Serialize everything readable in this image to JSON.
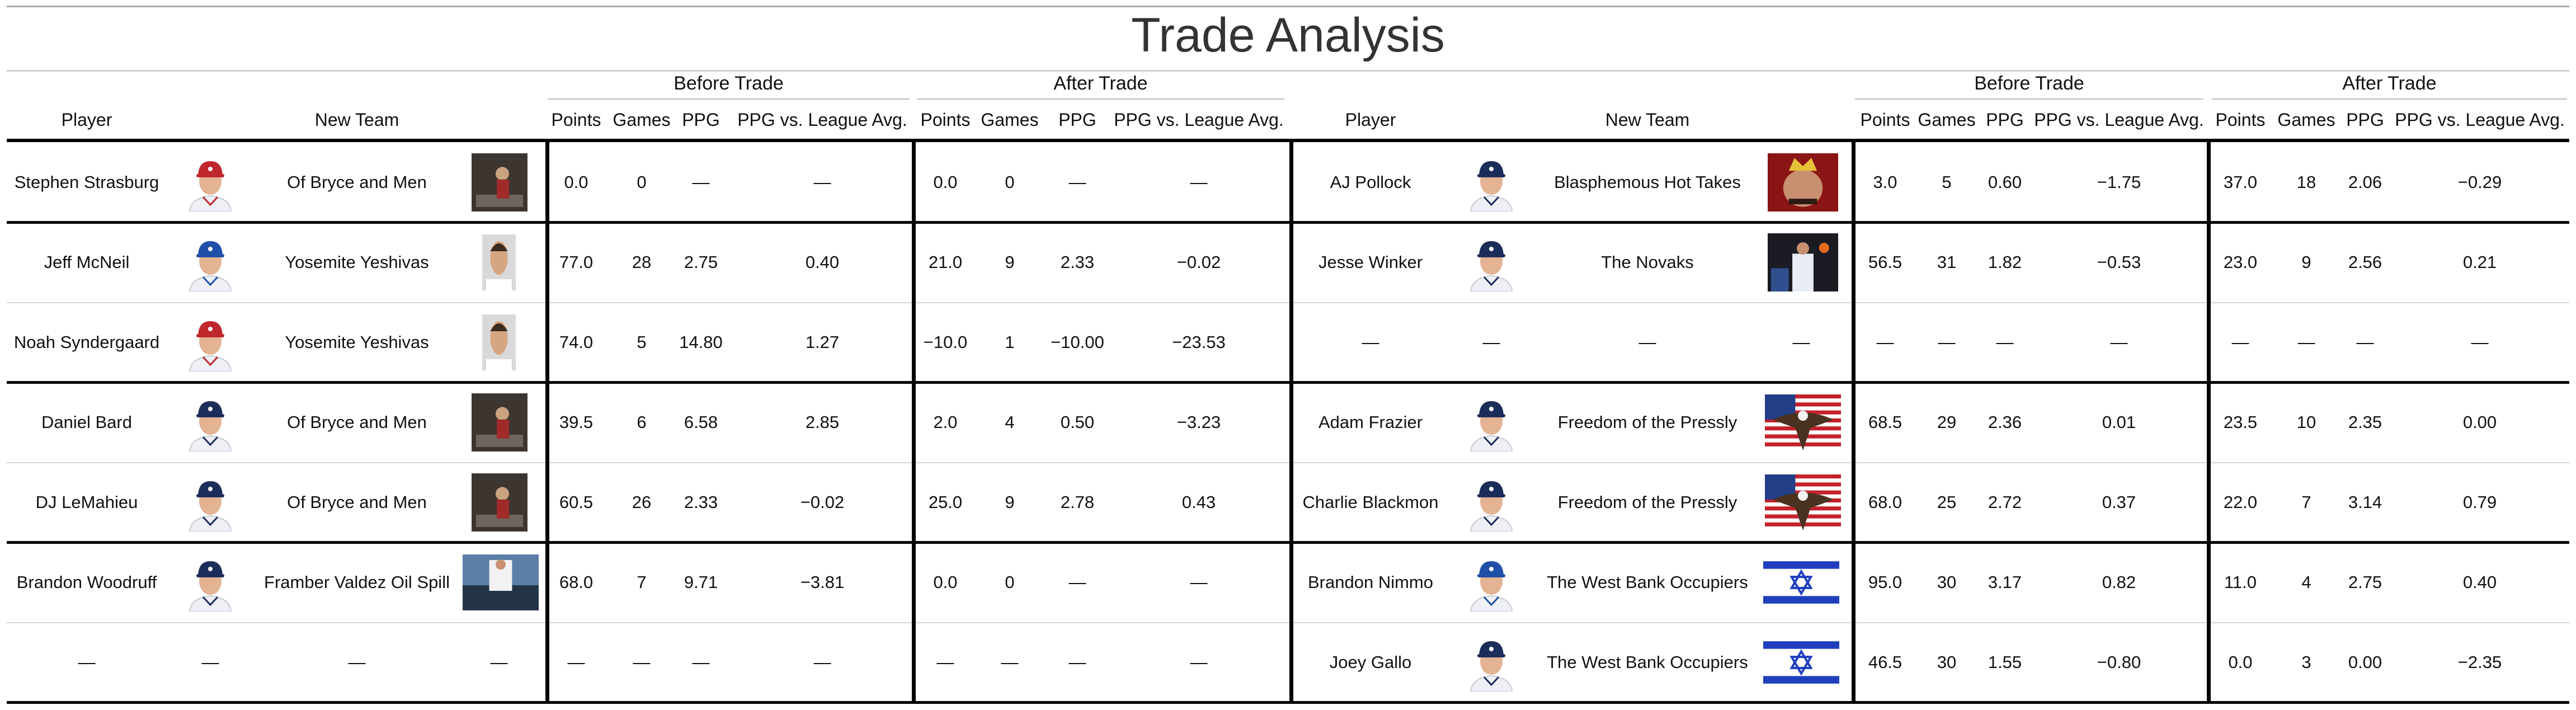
{
  "chart_data": {
    "type": "table",
    "title": "Trade Analysis",
    "group_headers": [
      "Before Trade",
      "After Trade",
      "Before Trade",
      "After Trade"
    ],
    "columns": [
      "Player",
      "New Team",
      "Points",
      "Games",
      "PPG",
      "PPG vs. League Avg.",
      "Points",
      "Games",
      "PPG",
      "PPG vs. League Avg.",
      "Player",
      "New Team",
      "Points",
      "Games",
      "PPG",
      "PPG vs. League Avg.",
      "Points",
      "Games",
      "PPG",
      "PPG vs. League Avg."
    ],
    "rows": [
      {
        "left": [
          "Stephen Strasburg",
          "Of Bryce and Men",
          "0.0",
          "0",
          "—",
          "—",
          "0.0",
          "0",
          "—",
          "—"
        ],
        "right": [
          "AJ Pollock",
          "Blasphemous Hot Takes",
          "3.0",
          "5",
          "0.60",
          "−1.75",
          "37.0",
          "18",
          "2.06",
          "−0.29"
        ],
        "left_avatar": "red-cap",
        "left_logo": "bryce",
        "right_avatar": "navy-cap",
        "right_logo": "hottakes"
      },
      {
        "left": [
          "Jeff McNeil",
          "Yosemite Yeshivas",
          "77.0",
          "28",
          "2.75",
          "0.40",
          "21.0",
          "9",
          "2.33",
          "−0.02"
        ],
        "right": [
          "Jesse Winker",
          "The Novaks",
          "56.5",
          "31",
          "1.82",
          "−0.53",
          "23.0",
          "9",
          "2.56",
          "0.21"
        ],
        "left_avatar": "blue-cap",
        "left_logo": "yeshiva",
        "right_avatar": "navy-cap",
        "right_logo": "novaks"
      },
      {
        "left": [
          "Noah Syndergaard",
          "Yosemite Yeshivas",
          "74.0",
          "5",
          "14.80",
          "1.27",
          "−10.0",
          "1",
          "−10.00",
          "−23.53"
        ],
        "right": [
          "—",
          "—",
          "—",
          "—",
          "—",
          "—",
          "—",
          "—",
          "—",
          "—"
        ],
        "left_avatar": "red-cap",
        "left_logo": "yeshiva",
        "right_avatar": "",
        "right_logo": ""
      },
      {
        "left": [
          "Daniel Bard",
          "Of Bryce and Men",
          "39.5",
          "6",
          "6.58",
          "2.85",
          "2.0",
          "4",
          "0.50",
          "−3.23"
        ],
        "right": [
          "Adam Frazier",
          "Freedom of the Pressly",
          "68.5",
          "29",
          "2.36",
          "0.01",
          "23.5",
          "10",
          "2.35",
          "0.00"
        ],
        "left_avatar": "navy-cap",
        "left_logo": "bryce",
        "right_avatar": "navy-cap",
        "right_logo": "eagle"
      },
      {
        "left": [
          "DJ LeMahieu",
          "Of Bryce and Men",
          "60.5",
          "26",
          "2.33",
          "−0.02",
          "25.0",
          "9",
          "2.78",
          "0.43"
        ],
        "right": [
          "Charlie Blackmon",
          "Freedom of the Pressly",
          "68.0",
          "25",
          "2.72",
          "0.37",
          "22.0",
          "7",
          "3.14",
          "0.79"
        ],
        "left_avatar": "navy-cap",
        "left_logo": "bryce",
        "right_avatar": "navy-cap",
        "right_logo": "eagle"
      },
      {
        "left": [
          "Brandon Woodruff",
          "Framber Valdez Oil Spill",
          "68.0",
          "7",
          "9.71",
          "−3.81",
          "0.0",
          "0",
          "—",
          "—"
        ],
        "right": [
          "Brandon Nimmo",
          "The West Bank Occupiers",
          "95.0",
          "30",
          "3.17",
          "0.82",
          "11.0",
          "4",
          "2.75",
          "0.40"
        ],
        "left_avatar": "navy-cap",
        "left_logo": "oilspill",
        "right_avatar": "blue-cap",
        "right_logo": "flag"
      },
      {
        "left": [
          "—",
          "—",
          "—",
          "—",
          "—",
          "—",
          "—",
          "—",
          "—",
          "—"
        ],
        "right": [
          "Joey Gallo",
          "The West Bank Occupiers",
          "46.5",
          "30",
          "1.55",
          "−0.80",
          "0.0",
          "3",
          "0.00",
          "−2.35"
        ],
        "left_avatar": "",
        "left_logo": "dash",
        "right_avatar": "navy-cap",
        "right_logo": "flag"
      }
    ],
    "colors": {
      "rule": "#000000",
      "light_rule": "#d0d0d0",
      "flag_blue": "#1f3fbf",
      "cap_navy": "#1d2d5a",
      "cap_blue": "#1f4fa8",
      "cap_red": "#c0272d"
    }
  }
}
